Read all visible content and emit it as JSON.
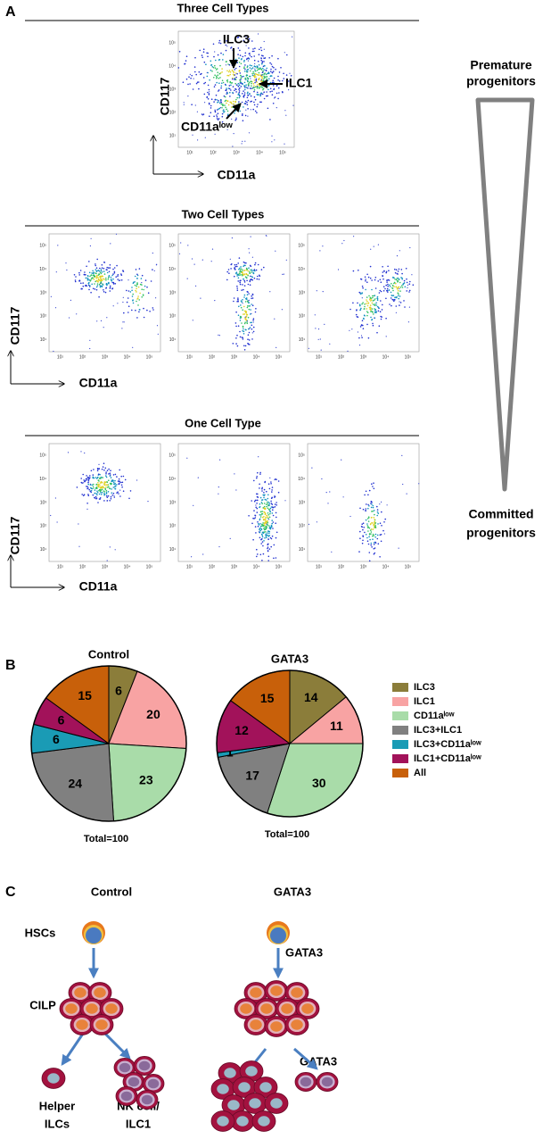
{
  "panel_a": {
    "label": "A",
    "sections": [
      {
        "title": "Three Cell Types"
      },
      {
        "title": "Two Cell Types"
      },
      {
        "title": "One Cell Type"
      }
    ],
    "y_axis_label": "CD117",
    "x_axis_label": "CD11a",
    "annotations": [
      "ILC3",
      "ILC1",
      "CD11aˡᵒʷ"
    ],
    "flow_ticks": [
      "10¹",
      "10²",
      "10³",
      "10⁴",
      "10⁵"
    ],
    "top_label": [
      "Premature",
      "progenitors"
    ],
    "bottom_label": [
      "Committed",
      "progenitors"
    ]
  },
  "panel_b": {
    "label": "B"
  },
  "chart_data": [
    {
      "type": "pie",
      "title": "Control",
      "note": "Total=100",
      "categories": [
        "ILC3",
        "ILC1",
        "CD11aˡᵒʷ",
        "ILC3+ILC1",
        "ILC3+CD11aˡᵒʷ",
        "ILC1+CD11aˡᵒʷ",
        "All"
      ],
      "values": [
        6,
        20,
        23,
        24,
        6,
        6,
        15
      ],
      "colors": [
        "#8b7d3a",
        "#f8a3a3",
        "#a9dca9",
        "#808080",
        "#1a9bb5",
        "#a2125a",
        "#c8600a"
      ]
    },
    {
      "type": "pie",
      "title": "GATA3",
      "note": "Total=100",
      "categories": [
        "ILC3",
        "ILC1",
        "CD11aˡᵒʷ",
        "ILC3+ILC1",
        "ILC3+CD11aˡᵒʷ",
        "ILC1+CD11aˡᵒʷ",
        "All"
      ],
      "values": [
        14,
        11,
        30,
        17,
        1,
        12,
        15
      ],
      "colors": [
        "#8b7d3a",
        "#f8a3a3",
        "#a9dca9",
        "#808080",
        "#1a9bb5",
        "#a2125a",
        "#c8600a"
      ]
    }
  ],
  "panel_c": {
    "label": "C",
    "columns": [
      "Control",
      "GATA3"
    ],
    "stages": [
      "HSCs",
      "CILP"
    ],
    "outcomes": [
      [
        "Helper",
        "ILCs"
      ],
      [
        "NK cell/",
        "ILC1"
      ]
    ],
    "arrow_labels": [
      "GATA3",
      "GATA3"
    ]
  }
}
